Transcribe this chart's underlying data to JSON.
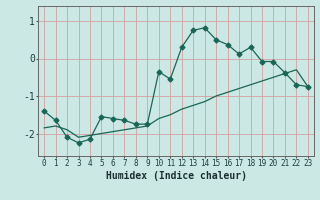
{
  "title": "",
  "xlabel": "Humidex (Indice chaleur)",
  "ylabel": "",
  "bg_color": "#cce8e4",
  "grid_color": "#d4a0a0",
  "line_color": "#1a6655",
  "ylim": [
    -2.6,
    1.4
  ],
  "xlim": [
    -0.5,
    23.5
  ],
  "yticks": [
    -2,
    -1,
    0,
    1
  ],
  "xticks": [
    0,
    1,
    2,
    3,
    4,
    5,
    6,
    7,
    8,
    9,
    10,
    11,
    12,
    13,
    14,
    15,
    16,
    17,
    18,
    19,
    20,
    21,
    22,
    23
  ],
  "curve1_x": [
    0,
    1,
    2,
    3,
    4,
    5,
    6,
    7,
    8,
    9,
    10,
    11,
    12,
    13,
    14,
    15,
    16,
    17,
    18,
    19,
    20,
    21,
    22,
    23
  ],
  "curve1_y": [
    -1.4,
    -1.65,
    -2.1,
    -2.25,
    -2.15,
    -1.55,
    -1.6,
    -1.65,
    -1.75,
    -1.75,
    -0.35,
    -0.55,
    0.3,
    0.75,
    0.82,
    0.5,
    0.37,
    0.12,
    0.3,
    -0.08,
    -0.08,
    -0.38,
    -0.7,
    -0.75
  ],
  "curve2_x": [
    0,
    1,
    2,
    3,
    4,
    5,
    6,
    7,
    8,
    9,
    10,
    11,
    12,
    13,
    14,
    15,
    16,
    17,
    18,
    19,
    20,
    21,
    22,
    23
  ],
  "curve2_y": [
    -1.85,
    -1.8,
    -1.9,
    -2.1,
    -2.05,
    -2.0,
    -1.95,
    -1.9,
    -1.85,
    -1.8,
    -1.6,
    -1.5,
    -1.35,
    -1.25,
    -1.15,
    -1.0,
    -0.9,
    -0.8,
    -0.7,
    -0.6,
    -0.5,
    -0.4,
    -0.3,
    -0.75
  ],
  "marker": "D",
  "markersize": 2.5
}
